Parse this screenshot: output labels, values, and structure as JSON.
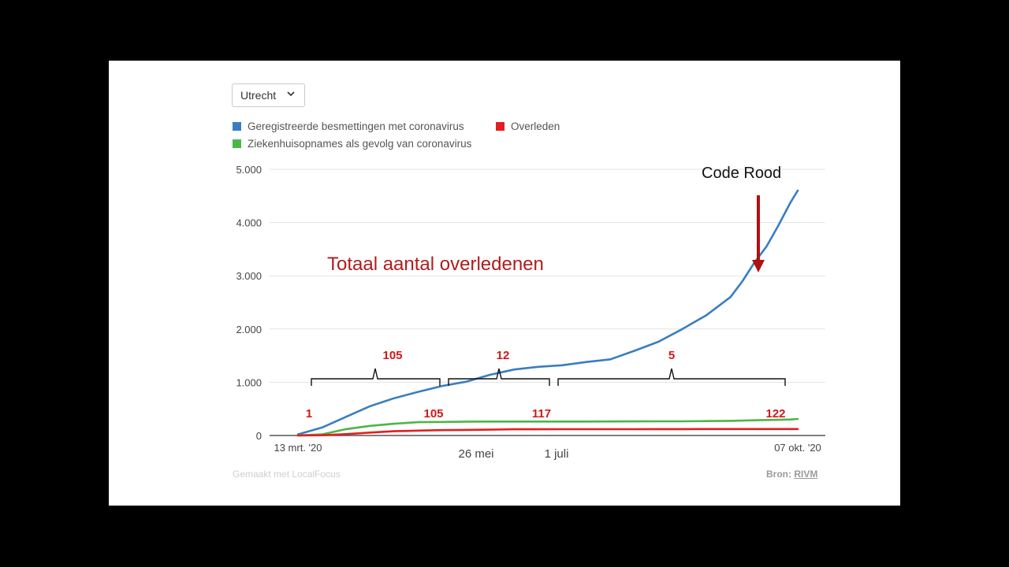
{
  "region_selector": {
    "value": "Utrecht"
  },
  "legend": [
    {
      "label": "Geregistreerde besmettingen met coronavirus",
      "color": "#3a7ebf"
    },
    {
      "label": "Overleden",
      "color": "#e02020"
    },
    {
      "label": "Ziekenhuisopnames als gevolg van coronavirus",
      "color": "#4cb648"
    }
  ],
  "footer": {
    "made_with": "Gemaakt met LocalFocus",
    "source_label": "Bron:",
    "source_link": "RIVM"
  },
  "chart_data": {
    "type": "line",
    "title": "",
    "xlabel": "",
    "ylabel": "",
    "ylim": [
      0,
      5000
    ],
    "y_ticks": [
      0,
      1000,
      2000,
      3000,
      4000,
      5000
    ],
    "y_tick_labels": [
      "0",
      "1.000",
      "2.000",
      "3.000",
      "4.000",
      "5.000"
    ],
    "x_tick_labels": [
      "13 mrt. '20",
      "07 okt. '20"
    ],
    "x_days_total": 208,
    "series": [
      {
        "name": "Geregistreerde besmettingen met coronavirus",
        "color": "#3a7ebf",
        "x": [
          0,
          10,
          20,
          30,
          40,
          50,
          60,
          70,
          80,
          90,
          100,
          110,
          120,
          130,
          140,
          150,
          160,
          170,
          180,
          185,
          190,
          195,
          200,
          205,
          208
        ],
        "values": [
          20,
          150,
          350,
          550,
          700,
          820,
          930,
          1010,
          1140,
          1240,
          1290,
          1320,
          1380,
          1430,
          1590,
          1760,
          2000,
          2260,
          2600,
          2900,
          3250,
          3550,
          3950,
          4380,
          4600
        ]
      },
      {
        "name": "Ziekenhuisopnames als gevolg van coronavirus",
        "color": "#4cb648",
        "x": [
          0,
          10,
          20,
          30,
          40,
          50,
          60,
          70,
          80,
          90,
          100,
          110,
          120,
          130,
          140,
          150,
          160,
          170,
          180,
          190,
          200,
          205,
          208
        ],
        "values": [
          0,
          20,
          120,
          180,
          220,
          250,
          255,
          260,
          262,
          262,
          262,
          262,
          262,
          264,
          265,
          266,
          267,
          270,
          275,
          285,
          295,
          300,
          310
        ]
      },
      {
        "name": "Overleden",
        "color": "#e02020",
        "x": [
          0,
          10,
          20,
          30,
          40,
          50,
          60,
          70,
          80,
          90,
          100,
          110,
          120,
          130,
          140,
          150,
          160,
          170,
          180,
          190,
          200,
          208
        ],
        "values": [
          0,
          5,
          25,
          55,
          80,
          92,
          100,
          105,
          110,
          117,
          117,
          118,
          118,
          119,
          119,
          120,
          120,
          121,
          121,
          122,
          122,
          122
        ]
      }
    ],
    "annotations": {
      "title": "Totaal aantal overledenen",
      "code_rood": "Code Rood",
      "date_labels": [
        "26 mei",
        "1 juli"
      ],
      "values_below": [
        "1",
        "105",
        "117",
        "122"
      ],
      "bracket_values": [
        "105",
        "12",
        "5"
      ]
    }
  }
}
